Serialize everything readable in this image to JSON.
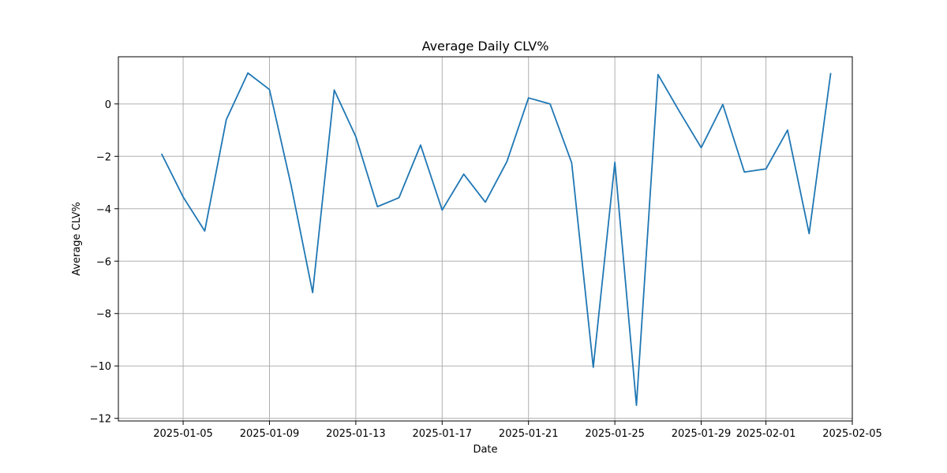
{
  "chart_data": {
    "type": "line",
    "title": "Average Daily CLV%",
    "xlabel": "Date",
    "ylabel": "Average CLV%",
    "grid": true,
    "colors": {
      "line": "#1f77b4"
    },
    "x_range": [
      "2025-01-02",
      "2025-02-05"
    ],
    "ylim": [
      -12.1,
      1.8
    ],
    "x_ticks": [
      {
        "date": "2025-01-05",
        "label": "2025-01-05"
      },
      {
        "date": "2025-01-09",
        "label": "2025-01-09"
      },
      {
        "date": "2025-01-13",
        "label": "2025-01-13"
      },
      {
        "date": "2025-01-17",
        "label": "2025-01-17"
      },
      {
        "date": "2025-01-21",
        "label": "2025-01-21"
      },
      {
        "date": "2025-01-25",
        "label": "2025-01-25"
      },
      {
        "date": "2025-01-29",
        "label": "2025-01-29"
      },
      {
        "date": "2025-02-01",
        "label": "2025-02-01"
      },
      {
        "date": "2025-02-05",
        "label": "2025-02-05"
      }
    ],
    "y_ticks": [
      {
        "value": 0,
        "label": "0"
      },
      {
        "value": -2,
        "label": "−2"
      },
      {
        "value": -4,
        "label": "−4"
      },
      {
        "value": -6,
        "label": "−6"
      },
      {
        "value": -8,
        "label": "−8"
      },
      {
        "value": -10,
        "label": "−10"
      },
      {
        "value": -12,
        "label": "−12"
      }
    ],
    "series": [
      {
        "x": [
          "2025-01-04",
          "2025-01-05",
          "2025-01-06",
          "2025-01-07",
          "2025-01-08",
          "2025-01-09",
          "2025-01-10",
          "2025-01-11",
          "2025-01-12",
          "2025-01-13",
          "2025-01-14",
          "2025-01-15",
          "2025-01-16",
          "2025-01-17",
          "2025-01-18",
          "2025-01-19",
          "2025-01-20",
          "2025-01-21",
          "2025-01-22",
          "2025-01-23",
          "2025-01-24",
          "2025-01-25",
          "2025-01-26",
          "2025-01-27",
          "2025-01-28",
          "2025-01-29",
          "2025-01-30",
          "2025-01-31",
          "2025-02-01",
          "2025-02-02",
          "2025-02-03",
          "2025-02-04"
        ],
        "values": [
          -1.9,
          -3.55,
          -4.85,
          -0.6,
          1.18,
          0.55,
          -3.1,
          -7.2,
          0.53,
          -1.25,
          -3.92,
          -3.58,
          -1.57,
          -4.05,
          -2.68,
          -3.75,
          -2.2,
          0.23,
          0.0,
          -2.25,
          -10.05,
          -2.23,
          -11.5,
          1.12,
          -0.3,
          -1.67,
          -0.02,
          -2.6,
          -2.48,
          -1.0,
          -4.95,
          1.18
        ]
      }
    ]
  }
}
